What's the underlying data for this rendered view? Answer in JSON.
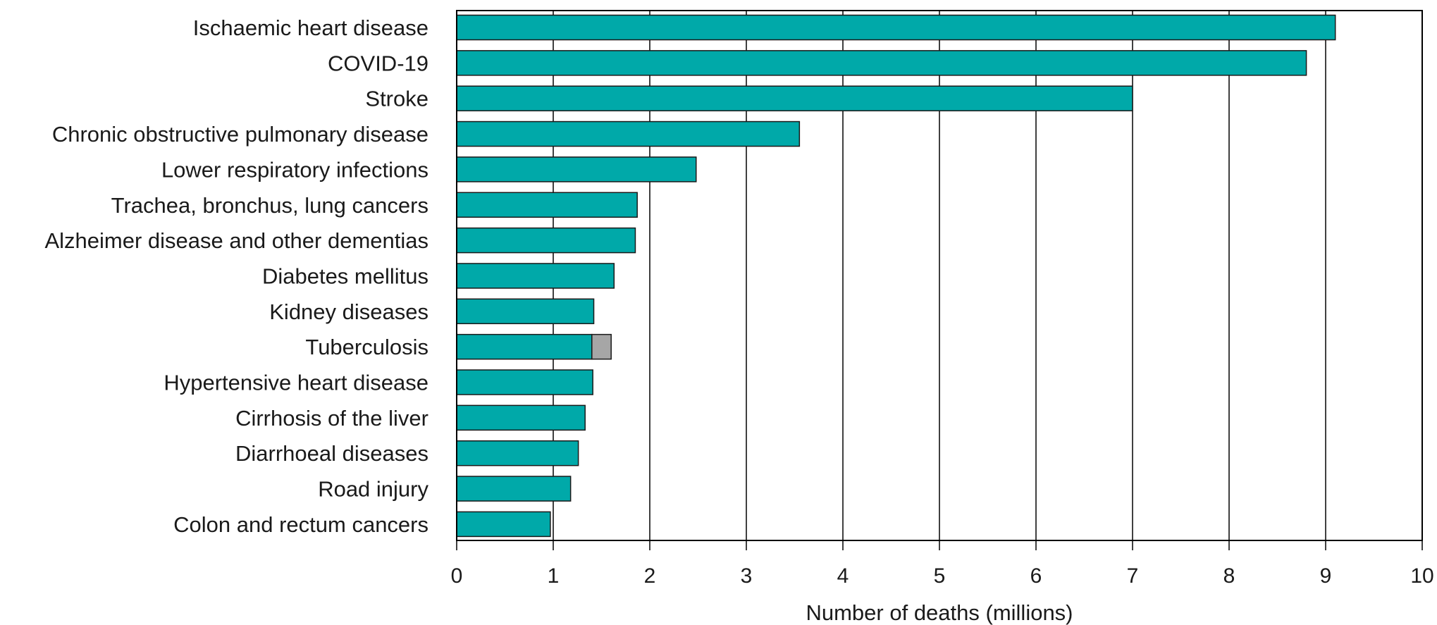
{
  "chart_data": {
    "type": "bar",
    "orientation": "horizontal",
    "stacked": true,
    "categories": [
      "Ischaemic heart disease",
      "COVID-19",
      "Stroke",
      "Chronic obstructive pulmonary disease",
      "Lower respiratory infections",
      "Trachea, bronchus, lung cancers",
      "Alzheimer disease and other dementias",
      "Diabetes mellitus",
      "Kidney diseases",
      "Tuberculosis",
      "Hypertensive heart disease",
      "Cirrhosis of the liver",
      "Diarrhoeal diseases",
      "Road injury",
      "Colon and rectum cancers"
    ],
    "series": [
      {
        "color": "#00A9A9",
        "values": [
          9.1,
          8.8,
          7.0,
          3.55,
          2.48,
          1.87,
          1.85,
          1.63,
          1.42,
          1.4,
          1.41,
          1.33,
          1.26,
          1.18,
          0.97
        ]
      },
      {
        "color": "#A6A6A6",
        "values": [
          0,
          0,
          0,
          0,
          0,
          0,
          0,
          0,
          0,
          0.2,
          0,
          0,
          0,
          0,
          0
        ]
      }
    ],
    "xlabel": "Number of deaths (millions)",
    "ylabel": "",
    "title": "",
    "xlim": [
      0,
      10
    ],
    "xticks": [
      0,
      1,
      2,
      3,
      4,
      5,
      6,
      7,
      8,
      9,
      10
    ],
    "grid": "vertical",
    "legend": "none"
  }
}
